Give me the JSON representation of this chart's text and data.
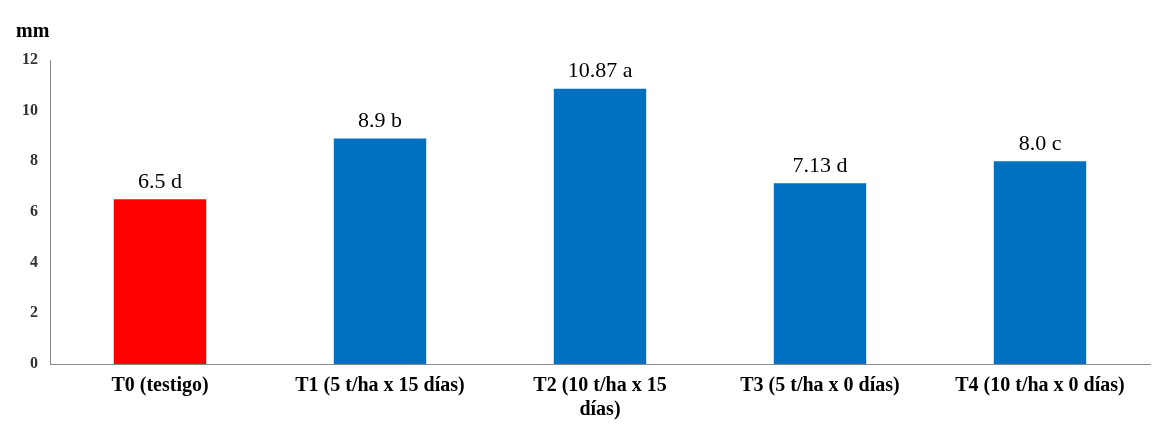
{
  "chart_data": {
    "type": "bar",
    "ylabel": "mm",
    "categories": [
      "T0 (testigo)",
      "T1 (5 t/ha x 15 días)",
      "T2 (10 t/ha x 15 días)",
      "T3 (5 t/ha x 0 días)",
      "T4 (10 t/ha x 0 días)"
    ],
    "values": [
      6.5,
      8.9,
      10.87,
      7.13,
      8.0
    ],
    "colors": [
      "#ff0000",
      "#0070c0",
      "#0070c0",
      "#0070c0",
      "#0070c0"
    ],
    "value_labels": [
      "6.5 d",
      "8.9 b",
      "10.87 a",
      "7.13 d",
      "8.0 c"
    ],
    "ylim": [
      0,
      12
    ],
    "yticks": [
      0,
      2,
      4,
      6,
      8,
      10,
      12
    ],
    "grid": false,
    "legend": false
  }
}
